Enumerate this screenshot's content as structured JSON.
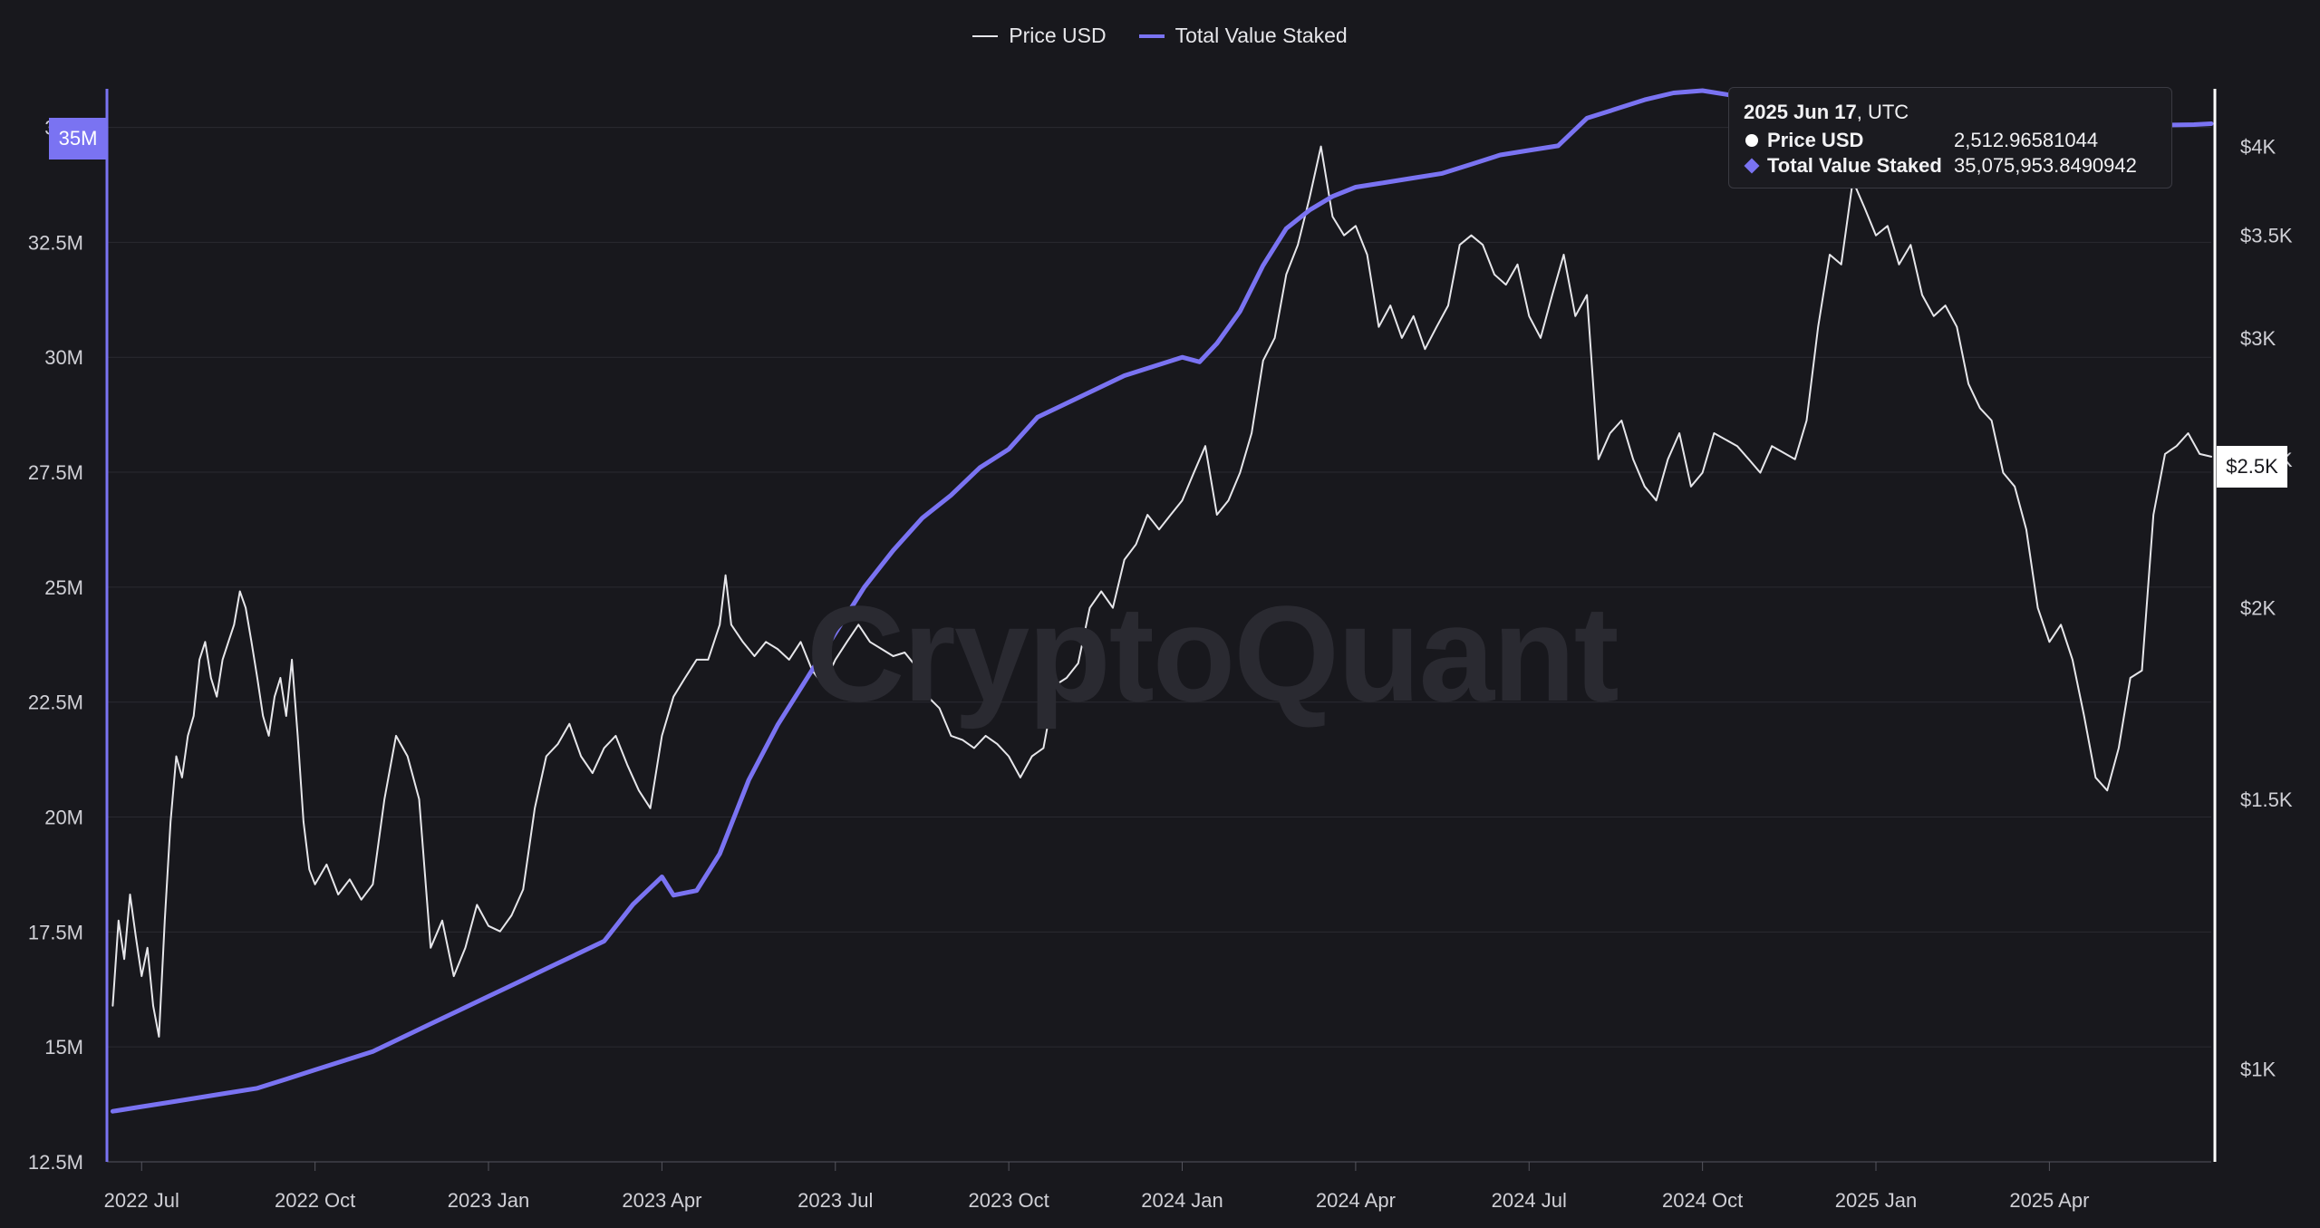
{
  "legend": {
    "price_label": "Price USD",
    "tvs_label": "Total Value Staked"
  },
  "watermark": "CryptoQuant",
  "tooltip": {
    "date": "2025 Jun 17",
    "tz": ", UTC",
    "price_label": "Price USD",
    "price_value": "2,512.96581044",
    "tvs_label": "Total Value Staked",
    "tvs_value": "35,075,953.8490942"
  },
  "flags": {
    "left": "35M",
    "right": "$2.5K"
  },
  "colors": {
    "background": "#18181d",
    "price_line": "#e6e6ea",
    "tvs_line": "#7a73f2",
    "grid": "#2a2a31"
  },
  "chart_data": {
    "type": "line",
    "x_ticks": [
      "2022 Jul",
      "2022 Oct",
      "2023 Jan",
      "2023 Apr",
      "2023 Jul",
      "2023 Oct",
      "2024 Jan",
      "2024 Apr",
      "2024 Jul",
      "2024 Oct",
      "2025 Jan",
      "2025 Apr"
    ],
    "x_tick_values": [
      7,
      10,
      13,
      16,
      19,
      22,
      25,
      28,
      31,
      34,
      37,
      40
    ],
    "x_range": [
      6.4,
      42.8
    ],
    "left_axis": {
      "series": "Total Value Staked",
      "range": [
        12500000,
        35800000
      ],
      "ticks": [
        12500000,
        15000000,
        17500000,
        20000000,
        22500000,
        25000000,
        27500000,
        30000000,
        32500000,
        35000000
      ],
      "tick_labels": [
        "12.5M",
        "15M",
        "17.5M",
        "20M",
        "22.5M",
        "25M",
        "27.5M",
        "30M",
        "32.5M",
        "35M"
      ]
    },
    "right_axis": {
      "series": "Price USD",
      "scale": "log",
      "range": [
        870,
        4350
      ],
      "ticks": [
        1000,
        1500,
        2000,
        2500,
        3000,
        3500,
        4000
      ],
      "tick_labels": [
        "$1K",
        "$1.5K",
        "$2K",
        "$2.5K",
        "$3K",
        "$3.5K",
        "$4K"
      ]
    },
    "grid": true,
    "legend_position": "top-center",
    "series": [
      {
        "name": "Price USD",
        "axis": "right",
        "points": [
          [
            6.5,
            1100
          ],
          [
            6.6,
            1250
          ],
          [
            6.7,
            1180
          ],
          [
            6.8,
            1300
          ],
          [
            6.9,
            1220
          ],
          [
            7.0,
            1150
          ],
          [
            7.1,
            1200
          ],
          [
            7.2,
            1100
          ],
          [
            7.3,
            1050
          ],
          [
            7.4,
            1250
          ],
          [
            7.5,
            1450
          ],
          [
            7.6,
            1600
          ],
          [
            7.7,
            1550
          ],
          [
            7.8,
            1650
          ],
          [
            7.9,
            1700
          ],
          [
            8.0,
            1850
          ],
          [
            8.1,
            1900
          ],
          [
            8.2,
            1800
          ],
          [
            8.3,
            1750
          ],
          [
            8.4,
            1850
          ],
          [
            8.5,
            1900
          ],
          [
            8.6,
            1950
          ],
          [
            8.7,
            2050
          ],
          [
            8.8,
            2000
          ],
          [
            8.9,
            1900
          ],
          [
            9.0,
            1800
          ],
          [
            9.1,
            1700
          ],
          [
            9.2,
            1650
          ],
          [
            9.3,
            1750
          ],
          [
            9.4,
            1800
          ],
          [
            9.5,
            1700
          ],
          [
            9.6,
            1850
          ],
          [
            9.7,
            1650
          ],
          [
            9.8,
            1450
          ],
          [
            9.9,
            1350
          ],
          [
            10.0,
            1320
          ],
          [
            10.2,
            1360
          ],
          [
            10.4,
            1300
          ],
          [
            10.6,
            1330
          ],
          [
            10.8,
            1290
          ],
          [
            11.0,
            1320
          ],
          [
            11.2,
            1500
          ],
          [
            11.4,
            1650
          ],
          [
            11.6,
            1600
          ],
          [
            11.8,
            1500
          ],
          [
            12.0,
            1200
          ],
          [
            12.2,
            1250
          ],
          [
            12.4,
            1150
          ],
          [
            12.6,
            1200
          ],
          [
            12.8,
            1280
          ],
          [
            13.0,
            1240
          ],
          [
            13.2,
            1230
          ],
          [
            13.4,
            1260
          ],
          [
            13.6,
            1310
          ],
          [
            13.8,
            1480
          ],
          [
            14.0,
            1600
          ],
          [
            14.2,
            1630
          ],
          [
            14.4,
            1680
          ],
          [
            14.6,
            1600
          ],
          [
            14.8,
            1560
          ],
          [
            15.0,
            1620
          ],
          [
            15.2,
            1650
          ],
          [
            15.4,
            1580
          ],
          [
            15.6,
            1520
          ],
          [
            15.8,
            1480
          ],
          [
            16.0,
            1650
          ],
          [
            16.2,
            1750
          ],
          [
            16.4,
            1800
          ],
          [
            16.6,
            1850
          ],
          [
            16.8,
            1850
          ],
          [
            17.0,
            1950
          ],
          [
            17.1,
            2100
          ],
          [
            17.2,
            1950
          ],
          [
            17.4,
            1900
          ],
          [
            17.6,
            1860
          ],
          [
            17.8,
            1900
          ],
          [
            18.0,
            1880
          ],
          [
            18.2,
            1850
          ],
          [
            18.4,
            1900
          ],
          [
            18.6,
            1820
          ],
          [
            18.8,
            1780
          ],
          [
            19.0,
            1850
          ],
          [
            19.2,
            1900
          ],
          [
            19.4,
            1950
          ],
          [
            19.6,
            1900
          ],
          [
            19.8,
            1880
          ],
          [
            20.0,
            1860
          ],
          [
            20.2,
            1870
          ],
          [
            20.4,
            1830
          ],
          [
            20.6,
            1750
          ],
          [
            20.8,
            1720
          ],
          [
            21.0,
            1650
          ],
          [
            21.2,
            1640
          ],
          [
            21.4,
            1620
          ],
          [
            21.6,
            1650
          ],
          [
            21.8,
            1630
          ],
          [
            22.0,
            1600
          ],
          [
            22.2,
            1550
          ],
          [
            22.4,
            1600
          ],
          [
            22.6,
            1620
          ],
          [
            22.8,
            1780
          ],
          [
            23.0,
            1800
          ],
          [
            23.2,
            1840
          ],
          [
            23.4,
            2000
          ],
          [
            23.6,
            2050
          ],
          [
            23.8,
            2000
          ],
          [
            24.0,
            2150
          ],
          [
            24.2,
            2200
          ],
          [
            24.4,
            2300
          ],
          [
            24.6,
            2250
          ],
          [
            24.8,
            2300
          ],
          [
            25.0,
            2350
          ],
          [
            25.2,
            2450
          ],
          [
            25.4,
            2550
          ],
          [
            25.6,
            2300
          ],
          [
            25.8,
            2350
          ],
          [
            26.0,
            2450
          ],
          [
            26.2,
            2600
          ],
          [
            26.4,
            2900
          ],
          [
            26.6,
            3000
          ],
          [
            26.8,
            3300
          ],
          [
            27.0,
            3450
          ],
          [
            27.2,
            3700
          ],
          [
            27.4,
            4000
          ],
          [
            27.6,
            3600
          ],
          [
            27.8,
            3500
          ],
          [
            28.0,
            3550
          ],
          [
            28.2,
            3400
          ],
          [
            28.4,
            3050
          ],
          [
            28.6,
            3150
          ],
          [
            28.8,
            3000
          ],
          [
            29.0,
            3100
          ],
          [
            29.2,
            2950
          ],
          [
            29.4,
            3050
          ],
          [
            29.6,
            3150
          ],
          [
            29.8,
            3450
          ],
          [
            30.0,
            3500
          ],
          [
            30.2,
            3450
          ],
          [
            30.4,
            3300
          ],
          [
            30.6,
            3250
          ],
          [
            30.8,
            3350
          ],
          [
            31.0,
            3100
          ],
          [
            31.2,
            3000
          ],
          [
            31.4,
            3200
          ],
          [
            31.6,
            3400
          ],
          [
            31.8,
            3100
          ],
          [
            32.0,
            3200
          ],
          [
            32.2,
            2500
          ],
          [
            32.4,
            2600
          ],
          [
            32.6,
            2650
          ],
          [
            32.8,
            2500
          ],
          [
            33.0,
            2400
          ],
          [
            33.2,
            2350
          ],
          [
            33.4,
            2500
          ],
          [
            33.6,
            2600
          ],
          [
            33.8,
            2400
          ],
          [
            34.0,
            2450
          ],
          [
            34.2,
            2600
          ],
          [
            34.6,
            2550
          ],
          [
            34.8,
            2500
          ],
          [
            35.0,
            2450
          ],
          [
            35.2,
            2550
          ],
          [
            35.6,
            2500
          ],
          [
            35.8,
            2650
          ],
          [
            36.0,
            3050
          ],
          [
            36.2,
            3400
          ],
          [
            36.4,
            3350
          ],
          [
            36.6,
            3800
          ],
          [
            36.8,
            3650
          ],
          [
            37.0,
            3500
          ],
          [
            37.2,
            3550
          ],
          [
            37.4,
            3350
          ],
          [
            37.6,
            3450
          ],
          [
            37.8,
            3200
          ],
          [
            38.0,
            3100
          ],
          [
            38.2,
            3150
          ],
          [
            38.4,
            3050
          ],
          [
            38.6,
            2800
          ],
          [
            38.8,
            2700
          ],
          [
            39.0,
            2650
          ],
          [
            39.2,
            2450
          ],
          [
            39.4,
            2400
          ],
          [
            39.6,
            2250
          ],
          [
            39.8,
            2000
          ],
          [
            40.0,
            1900
          ],
          [
            40.2,
            1950
          ],
          [
            40.4,
            1850
          ],
          [
            40.6,
            1700
          ],
          [
            40.8,
            1550
          ],
          [
            41.0,
            1520
          ],
          [
            41.2,
            1620
          ],
          [
            41.4,
            1800
          ],
          [
            41.6,
            1820
          ],
          [
            41.8,
            2300
          ],
          [
            42.0,
            2520
          ],
          [
            42.2,
            2550
          ],
          [
            42.4,
            2600
          ],
          [
            42.6,
            2520
          ],
          [
            42.8,
            2510
          ]
        ]
      },
      {
        "name": "Total Value Staked",
        "axis": "left",
        "points": [
          [
            6.5,
            13600000
          ],
          [
            7.0,
            13700000
          ],
          [
            7.5,
            13800000
          ],
          [
            8.0,
            13900000
          ],
          [
            8.5,
            14000000
          ],
          [
            9.0,
            14100000
          ],
          [
            9.5,
            14300000
          ],
          [
            10.0,
            14500000
          ],
          [
            10.5,
            14700000
          ],
          [
            11.0,
            14900000
          ],
          [
            11.5,
            15200000
          ],
          [
            12.0,
            15500000
          ],
          [
            12.5,
            15800000
          ],
          [
            13.0,
            16100000
          ],
          [
            13.5,
            16400000
          ],
          [
            14.0,
            16700000
          ],
          [
            14.5,
            17000000
          ],
          [
            15.0,
            17300000
          ],
          [
            15.5,
            18100000
          ],
          [
            16.0,
            18700000
          ],
          [
            16.2,
            18300000
          ],
          [
            16.6,
            18400000
          ],
          [
            17.0,
            19200000
          ],
          [
            17.5,
            20800000
          ],
          [
            18.0,
            22000000
          ],
          [
            18.5,
            23000000
          ],
          [
            19.0,
            24000000
          ],
          [
            19.5,
            25000000
          ],
          [
            20.0,
            25800000
          ],
          [
            20.5,
            26500000
          ],
          [
            21.0,
            27000000
          ],
          [
            21.5,
            27600000
          ],
          [
            22.0,
            28000000
          ],
          [
            22.5,
            28700000
          ],
          [
            23.0,
            29000000
          ],
          [
            23.5,
            29300000
          ],
          [
            24.0,
            29600000
          ],
          [
            24.5,
            29800000
          ],
          [
            25.0,
            30000000
          ],
          [
            25.3,
            29900000
          ],
          [
            25.6,
            30300000
          ],
          [
            26.0,
            31000000
          ],
          [
            26.4,
            32000000
          ],
          [
            26.8,
            32800000
          ],
          [
            27.2,
            33200000
          ],
          [
            27.6,
            33500000
          ],
          [
            28.0,
            33700000
          ],
          [
            28.5,
            33800000
          ],
          [
            29.0,
            33900000
          ],
          [
            29.5,
            34000000
          ],
          [
            30.0,
            34200000
          ],
          [
            30.5,
            34400000
          ],
          [
            31.0,
            34500000
          ],
          [
            31.5,
            34600000
          ],
          [
            32.0,
            35200000
          ],
          [
            32.5,
            35400000
          ],
          [
            33.0,
            35600000
          ],
          [
            33.5,
            35750000
          ],
          [
            34.0,
            35800000
          ],
          [
            34.5,
            35700000
          ],
          [
            35.0,
            35650000
          ],
          [
            35.5,
            35600000
          ],
          [
            36.0,
            35500000
          ],
          [
            36.5,
            35400000
          ],
          [
            37.0,
            35300000
          ],
          [
            37.5,
            35200000
          ],
          [
            38.0,
            35200000
          ],
          [
            38.5,
            35300000
          ],
          [
            39.0,
            35250000
          ],
          [
            39.5,
            35200000
          ],
          [
            40.0,
            35100000
          ],
          [
            40.5,
            35000000
          ],
          [
            41.0,
            35050000
          ],
          [
            41.5,
            35100000
          ],
          [
            42.0,
            35050000
          ],
          [
            42.5,
            35060000
          ],
          [
            42.8,
            35080000
          ]
        ]
      }
    ]
  }
}
